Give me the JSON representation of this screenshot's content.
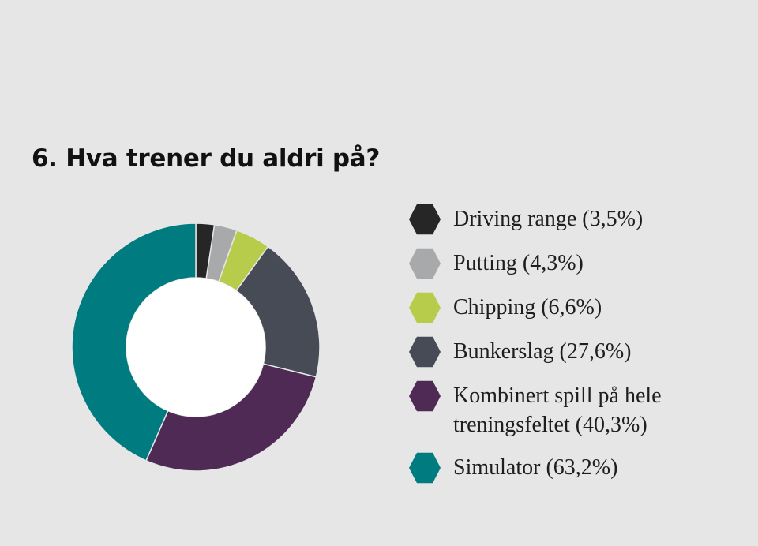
{
  "title": "6. Hva trener du aldri på?",
  "chart_data": {
    "type": "pie",
    "style": "donut",
    "legend_position": "right",
    "series": [
      {
        "name": "Driving range",
        "value": 3.5,
        "label": "Driving range (3,5%)",
        "color": "#262626"
      },
      {
        "name": "Putting",
        "value": 4.3,
        "label": "Putting (4,3%)",
        "color": "#a7a9ab"
      },
      {
        "name": "Chipping",
        "value": 6.6,
        "label": "Chipping (6,6%)",
        "color": "#b8cc4b"
      },
      {
        "name": "Bunkerslag",
        "value": 27.6,
        "label": "Bunkerslag (27,6%)",
        "color": "#464b55"
      },
      {
        "name": "Kombinert spill på hele treningsfeltet",
        "value": 40.3,
        "label": "Kombinert spill på hele treningsfeltet (40,3%)",
        "color": "#4e2a55"
      },
      {
        "name": "Simulator",
        "value": 63.2,
        "label": "Simulator (63,2%)",
        "color": "#007c80"
      }
    ]
  }
}
